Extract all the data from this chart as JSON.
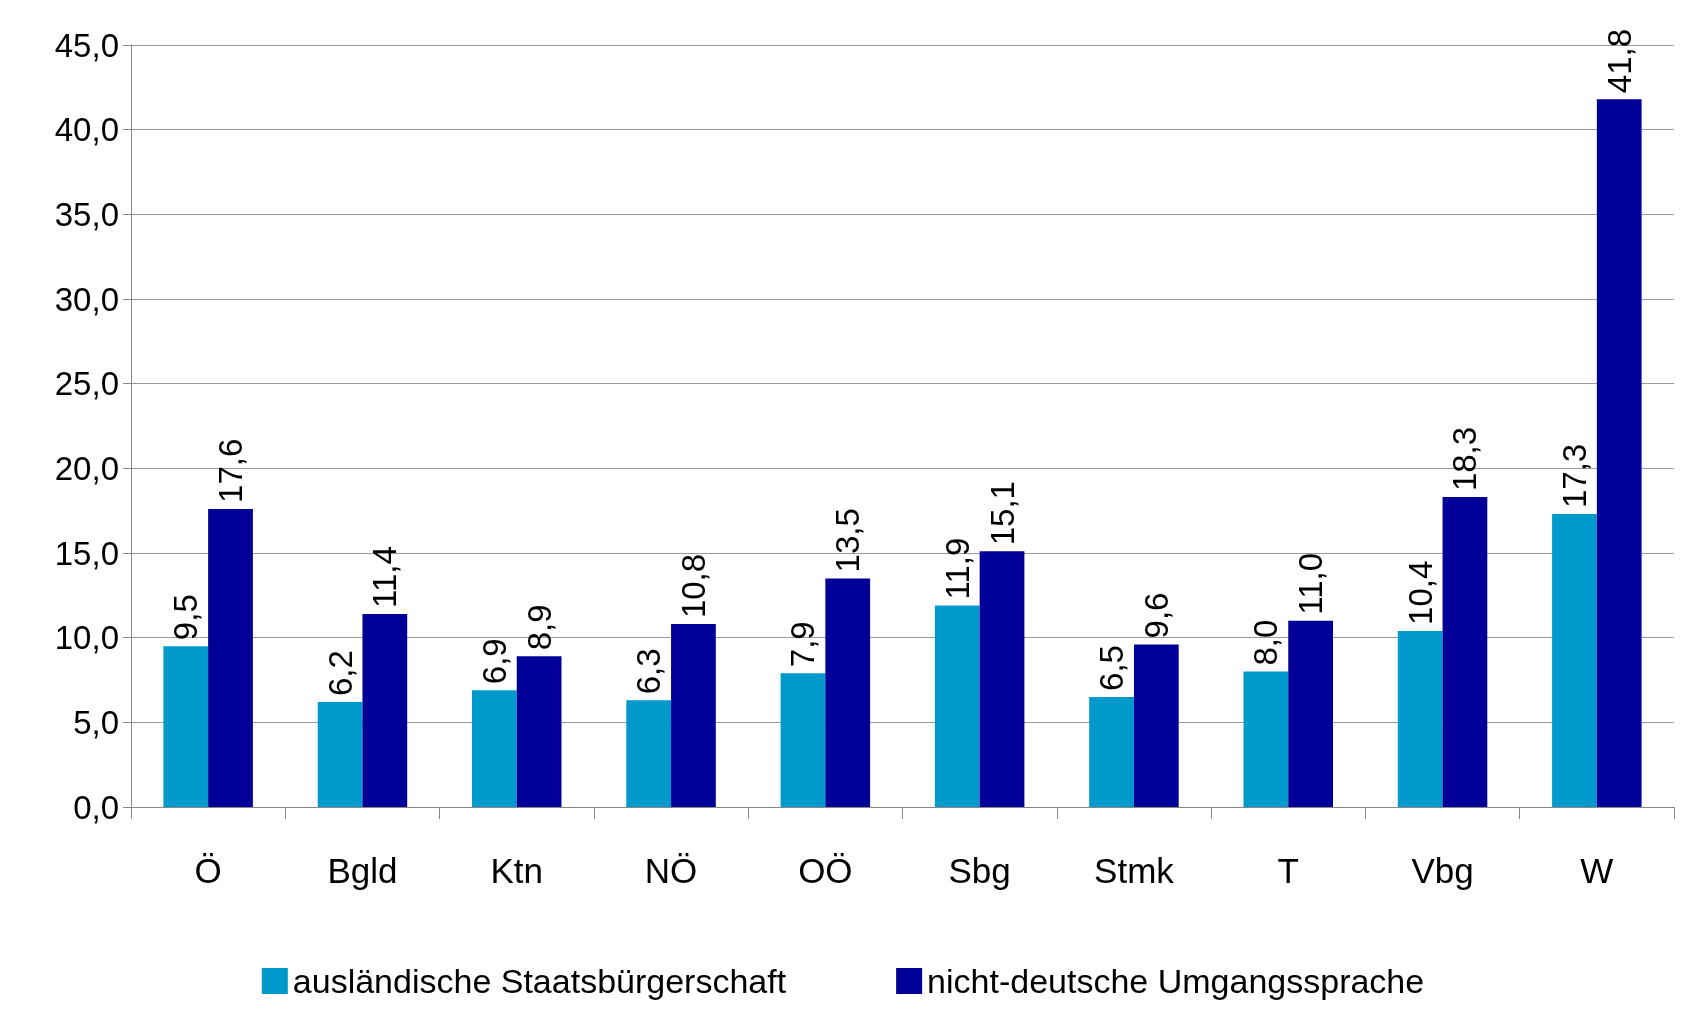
{
  "chart_data": {
    "type": "bar",
    "categories": [
      "Ö",
      "Bgld",
      "Ktn",
      "NÖ",
      "OÖ",
      "Sbg",
      "Stmk",
      "T",
      "Vbg",
      "W"
    ],
    "series": [
      {
        "name": "ausländische Staatsbürgerschaft",
        "color": "#0099cc",
        "values": [
          9.5,
          6.2,
          6.9,
          6.3,
          7.9,
          11.9,
          6.5,
          8.0,
          10.4,
          17.3
        ],
        "value_labels": [
          "9,5",
          "6,2",
          "6,9",
          "6,3",
          "7,9",
          "11,9",
          "6,5",
          "8,0",
          "10,4",
          "17,3"
        ]
      },
      {
        "name": "nicht-deutsche Umgangssprache",
        "color": "#000099",
        "values": [
          17.6,
          11.4,
          8.9,
          10.8,
          13.5,
          15.1,
          9.6,
          11.0,
          18.3,
          41.8
        ],
        "value_labels": [
          "17,6",
          "11,4",
          "8,9",
          "10,8",
          "13,5",
          "15,1",
          "9,6",
          "11,0",
          "18,3",
          "41,8"
        ]
      }
    ],
    "ylim": [
      0,
      45
    ],
    "yticks": [
      {
        "value": 0,
        "label": "0,0"
      },
      {
        "value": 5,
        "label": "5,0"
      },
      {
        "value": 10,
        "label": "10,0"
      },
      {
        "value": 15,
        "label": "15,0"
      },
      {
        "value": 20,
        "label": "20,0"
      },
      {
        "value": 25,
        "label": "25,0"
      },
      {
        "value": 30,
        "label": "30,0"
      },
      {
        "value": 35,
        "label": "35,0"
      },
      {
        "value": 40,
        "label": "40,0"
      },
      {
        "value": 45,
        "label": "45,0"
      }
    ],
    "grid": "y",
    "legend": "bottom"
  }
}
